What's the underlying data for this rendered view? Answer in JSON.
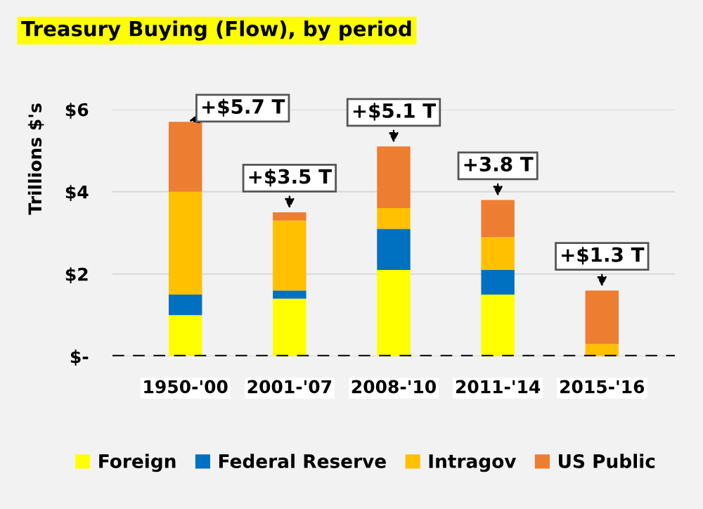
{
  "chart_data": {
    "type": "bar",
    "stacked": true,
    "title": "Treasury Buying (Flow), by period",
    "ylabel": "Trillions $'s",
    "categories": [
      "1950-'00",
      "2001-'07",
      "2008-'10",
      "2011-'14",
      "2015-'16"
    ],
    "series": [
      {
        "name": "Foreign",
        "color": "#ffff00",
        "values": [
          1.0,
          1.4,
          2.1,
          1.5,
          0
        ]
      },
      {
        "name": "Federal Reserve",
        "color": "#0070c0",
        "values": [
          0.5,
          0.2,
          1.0,
          0.6,
          0
        ]
      },
      {
        "name": "Intragov",
        "color": "#ffc000",
        "values": [
          2.5,
          1.7,
          0.5,
          0.8,
          0.3
        ]
      },
      {
        "name": "US Public",
        "color": "#ed7d31",
        "values": [
          1.7,
          0.2,
          1.5,
          0.9,
          1.3
        ]
      }
    ],
    "annotations": [
      {
        "text": "+$5.7 T",
        "x": "1950-'00",
        "y": 5.7
      },
      {
        "text": "+$3.5 T",
        "x": "2001-'07",
        "y": 3.5
      },
      {
        "text": "+$5.1 T",
        "x": "2008-'10",
        "y": 5.1
      },
      {
        "text": "+3.8 T",
        "x": "2011-'14",
        "y": 3.8
      },
      {
        "text": "+$1.3 T",
        "x": "2015-'16",
        "y": 1.6
      }
    ],
    "ylim": [
      0,
      6
    ],
    "yticks": [
      {
        "value": 0,
        "label": "$-"
      },
      {
        "value": 2,
        "label": "$2"
      },
      {
        "value": 4,
        "label": "$4"
      },
      {
        "value": 6,
        "label": "$6"
      }
    ],
    "ref_lines": [
      {
        "axis": "y",
        "value": 0,
        "color": "#000000",
        "line_style": "dashed"
      }
    ],
    "grid": "y",
    "legend": "bottom"
  }
}
